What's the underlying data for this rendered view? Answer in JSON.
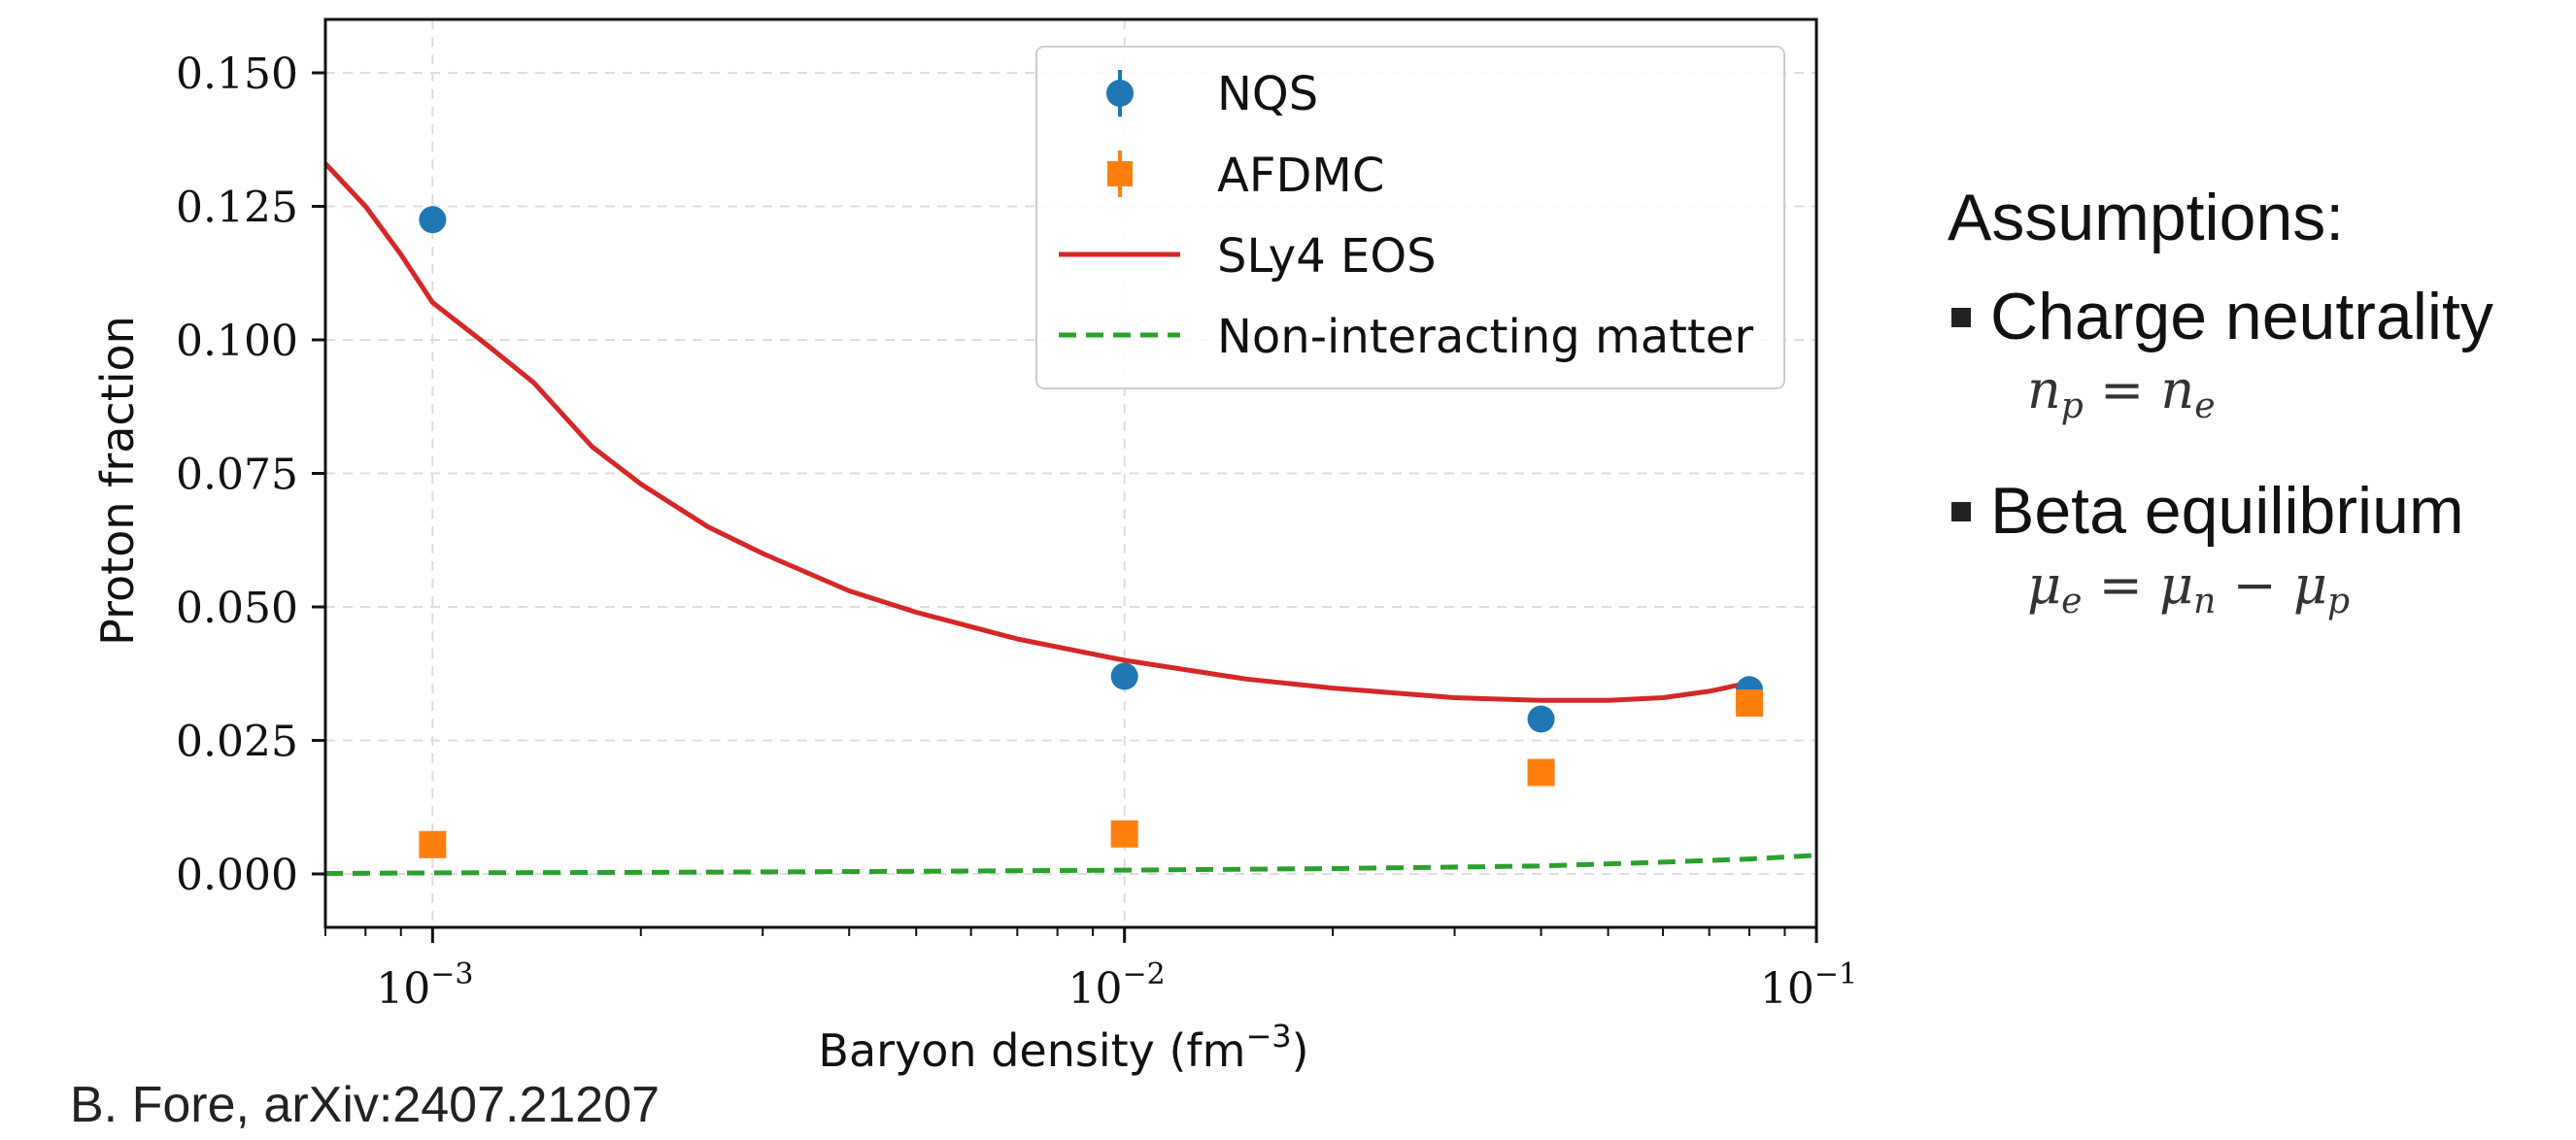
{
  "chart_data": {
    "type": "scatter",
    "xlabel": "Baryon density (fm",
    "xlabel_sup": "−3",
    "xlabel_close": ")",
    "ylabel": "Proton fraction",
    "xscale": "log",
    "xlim": [
      0.0007,
      0.1
    ],
    "ylim": [
      -0.01,
      0.16
    ],
    "yticks": [
      0.0,
      0.025,
      0.05,
      0.075,
      0.1,
      0.125,
      0.15
    ],
    "ytick_labels": [
      "0.000",
      "0.025",
      "0.050",
      "0.075",
      "0.100",
      "0.125",
      "0.150"
    ],
    "xticks": [
      0.001,
      0.01,
      0.1
    ],
    "xtick_labels": [
      {
        "base": "10",
        "exp": "−3"
      },
      {
        "base": "10",
        "exp": "−2"
      },
      {
        "base": "10",
        "exp": "−1"
      }
    ],
    "grid": true,
    "legend_position": "top-right",
    "series": [
      {
        "name": "NQS",
        "kind": "errorbar",
        "marker": "circle",
        "color": "#1f77b4",
        "points": [
          {
            "x": 0.001,
            "y": 0.1225
          },
          {
            "x": 0.01,
            "y": 0.037
          },
          {
            "x": 0.04,
            "y": 0.029
          },
          {
            "x": 0.08,
            "y": 0.0345
          }
        ]
      },
      {
        "name": "AFDMC",
        "kind": "errorbar",
        "marker": "square",
        "color": "#ff7f0e",
        "points": [
          {
            "x": 0.001,
            "y": 0.0055
          },
          {
            "x": 0.01,
            "y": 0.0075
          },
          {
            "x": 0.04,
            "y": 0.019
          },
          {
            "x": 0.08,
            "y": 0.032
          }
        ]
      },
      {
        "name": "SLy4 EOS",
        "kind": "line",
        "style": "solid",
        "color": "#d62728",
        "points": [
          {
            "x": 0.0007,
            "y": 0.133
          },
          {
            "x": 0.0008,
            "y": 0.125
          },
          {
            "x": 0.0009,
            "y": 0.116
          },
          {
            "x": 0.001,
            "y": 0.107
          },
          {
            "x": 0.0012,
            "y": 0.099
          },
          {
            "x": 0.0014,
            "y": 0.092
          },
          {
            "x": 0.0017,
            "y": 0.08
          },
          {
            "x": 0.002,
            "y": 0.073
          },
          {
            "x": 0.0025,
            "y": 0.065
          },
          {
            "x": 0.003,
            "y": 0.06
          },
          {
            "x": 0.004,
            "y": 0.053
          },
          {
            "x": 0.005,
            "y": 0.049
          },
          {
            "x": 0.007,
            "y": 0.044
          },
          {
            "x": 0.01,
            "y": 0.04
          },
          {
            "x": 0.015,
            "y": 0.0365
          },
          {
            "x": 0.02,
            "y": 0.0348
          },
          {
            "x": 0.03,
            "y": 0.033
          },
          {
            "x": 0.04,
            "y": 0.0325
          },
          {
            "x": 0.05,
            "y": 0.0325
          },
          {
            "x": 0.06,
            "y": 0.033
          },
          {
            "x": 0.07,
            "y": 0.0342
          },
          {
            "x": 0.08,
            "y": 0.0358
          }
        ]
      },
      {
        "name": "Non-interacting matter",
        "kind": "line",
        "style": "dashed",
        "color": "#2ca02c",
        "points": [
          {
            "x": 0.0007,
            "y": 0.0001
          },
          {
            "x": 0.001,
            "y": 0.0002
          },
          {
            "x": 0.002,
            "y": 0.0003
          },
          {
            "x": 0.005,
            "y": 0.0005
          },
          {
            "x": 0.01,
            "y": 0.0007
          },
          {
            "x": 0.02,
            "y": 0.001
          },
          {
            "x": 0.04,
            "y": 0.0015
          },
          {
            "x": 0.06,
            "y": 0.0022
          },
          {
            "x": 0.08,
            "y": 0.0028
          },
          {
            "x": 0.1,
            "y": 0.0035
          }
        ]
      }
    ]
  },
  "citation": "B. Fore, arXiv:2407.21207",
  "assumptions": {
    "title": "Assumptions:",
    "items": [
      {
        "label": "Charge neutrality"
      },
      {
        "label": "Beta equilibrium"
      }
    ]
  }
}
